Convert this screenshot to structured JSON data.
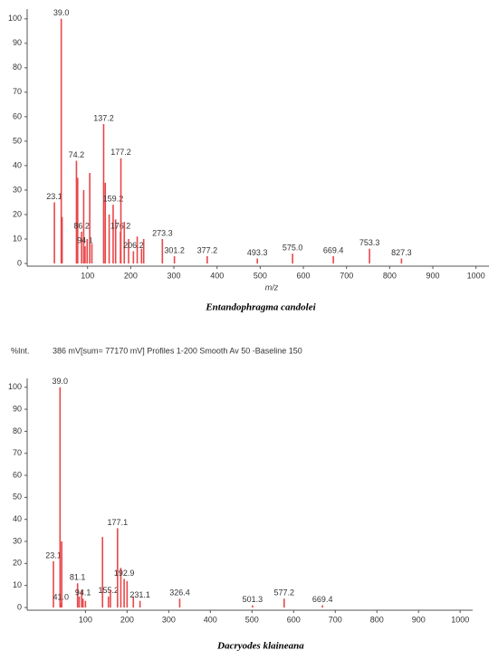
{
  "chart_data": [
    {
      "type": "bar",
      "color": "#e8474a",
      "x_label": "m/z",
      "caption": "Entandophragma candolei",
      "x": [
        23.1,
        39.0,
        41,
        74.2,
        77,
        86.2,
        91,
        94.1,
        99,
        105,
        110,
        137.2,
        141,
        150,
        159.2,
        165,
        176.2,
        177.2,
        185,
        195,
        206.2,
        215,
        225,
        230,
        273.3,
        301.2,
        377.2,
        493.3,
        575.0,
        669.4,
        753.3,
        827.3
      ],
      "values": [
        25,
        100,
        19,
        42,
        35,
        13,
        30,
        7,
        10,
        37,
        8,
        57,
        33,
        20,
        24,
        18,
        13,
        43,
        17,
        10,
        5,
        11,
        6,
        10,
        10,
        3,
        3,
        2,
        4,
        3,
        6,
        2
      ],
      "x_labels": [
        "23.1",
        "39.0",
        null,
        "74.2",
        null,
        "86.2",
        null,
        "94.1",
        null,
        null,
        null,
        "137.2",
        null,
        null,
        "159.2",
        null,
        "176.2",
        "177.2",
        null,
        null,
        "206.2",
        null,
        null,
        null,
        "273.3",
        "301.2",
        "377.2",
        "493.3",
        "575.0",
        "669.4",
        "753.3",
        "827.3"
      ],
      "xlim": [
        -40,
        1030
      ],
      "xticks": [
        100,
        200,
        300,
        400,
        500,
        600,
        700,
        800,
        900,
        1000
      ],
      "ylim": [
        0,
        104
      ],
      "yticks": [
        0,
        10,
        20,
        30,
        40,
        50,
        60,
        70,
        80,
        90,
        100
      ]
    },
    {
      "type": "bar",
      "color": "#e8474a",
      "y_label": "%Int.",
      "subtitle": "386 mV[sum= 77170 mV]  Profiles 1-200  Smooth Av 50 -Baseline 150",
      "caption": "Dacryodes klaineana",
      "x": [
        23.1,
        39.0,
        41.0,
        43,
        81.1,
        85,
        91,
        94.1,
        100,
        141,
        155.2,
        160,
        177.1,
        185,
        192.9,
        200,
        215,
        231.1,
        326.4,
        501.3,
        577.2,
        669.4
      ],
      "values": [
        21,
        100,
        2,
        30,
        11,
        5,
        8,
        4,
        3,
        32,
        5,
        8,
        36,
        18,
        13,
        12,
        5,
        3,
        4,
        1,
        4,
        1
      ],
      "x_labels": [
        "23.1",
        "39.0",
        "41.0",
        null,
        "81.1",
        null,
        null,
        "94.1",
        null,
        null,
        "155.2",
        null,
        "177.1",
        null,
        "192.9",
        null,
        null,
        "231.1",
        "326.4",
        "501.3",
        "577.2",
        "669.4"
      ],
      "xlim": [
        -40,
        1030
      ],
      "xticks": [
        100,
        200,
        300,
        400,
        500,
        600,
        700,
        800,
        900,
        1000
      ],
      "ylim": [
        0,
        104
      ],
      "yticks": [
        0,
        10,
        20,
        30,
        40,
        50,
        60,
        70,
        80,
        90,
        100
      ]
    }
  ]
}
